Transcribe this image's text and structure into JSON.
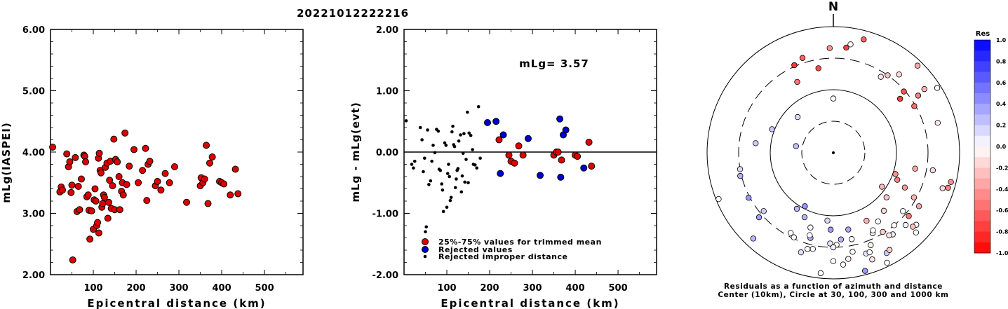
{
  "event_title": "20221012222216",
  "chart_data": [
    {
      "type": "scatter",
      "xlabel": "Epicentral distance (km)",
      "ylabel": "mLg(IASPEI)",
      "xlim": [
        0,
        590
      ],
      "ylim": [
        2.0,
        6.0
      ],
      "xticks": [
        "100",
        "200",
        "300",
        "400",
        "500"
      ],
      "yticks": [
        "2.00",
        "3.00",
        "4.00",
        "5.00",
        "6.00"
      ],
      "grid": false,
      "series": [
        {
          "color": "#dd0000",
          "points": [
            [
              5,
              4.08
            ],
            [
              22,
              3.35
            ],
            [
              25,
              3.43
            ],
            [
              28,
              3.38
            ],
            [
              38,
              3.97
            ],
            [
              42,
              3.76
            ],
            [
              45,
              3.84
            ],
            [
              48,
              3.34
            ],
            [
              50,
              3.46
            ],
            [
              52,
              2.24
            ],
            [
              58,
              3.91
            ],
            [
              62,
              3.03
            ],
            [
              65,
              3.44
            ],
            [
              68,
              3.06
            ],
            [
              72,
              3.56
            ],
            [
              78,
              3.95
            ],
            [
              80,
              3.93
            ],
            [
              82,
              3.84
            ],
            [
              85,
              3.27
            ],
            [
              88,
              3.3
            ],
            [
              90,
              3.05
            ],
            [
              92,
              2.58
            ],
            [
              96,
              3.04
            ],
            [
              100,
              2.74
            ],
            [
              102,
              3.22
            ],
            [
              104,
              3.4
            ],
            [
              106,
              3.2
            ],
            [
              108,
              2.8
            ],
            [
              110,
              2.85
            ],
            [
              112,
              3.9
            ],
            [
              113,
              2.68
            ],
            [
              114,
              3.98
            ],
            [
              116,
              3.7
            ],
            [
              118,
              3.66
            ],
            [
              120,
              3.1
            ],
            [
              122,
              3.16
            ],
            [
              124,
              3.3
            ],
            [
              126,
              3.26
            ],
            [
              128,
              3.75
            ],
            [
              132,
              3.82
            ],
            [
              134,
              2.92
            ],
            [
              136,
              3.18
            ],
            [
              138,
              3.54
            ],
            [
              140,
              3.85
            ],
            [
              142,
              3.08
            ],
            [
              145,
              3.45
            ],
            [
              148,
              4.21
            ],
            [
              150,
              3.06
            ],
            [
              152,
              3.88
            ],
            [
              156,
              3.84
            ],
            [
              160,
              3.6
            ],
            [
              162,
              3.06
            ],
            [
              166,
              3.36
            ],
            [
              168,
              3.5
            ],
            [
              170,
              3.3
            ],
            [
              174,
              4.31
            ],
            [
              178,
              3.47
            ],
            [
              184,
              3.77
            ],
            [
              195,
              4.04
            ],
            [
              205,
              3.5
            ],
            [
              215,
              3.7
            ],
            [
              222,
              4.06
            ],
            [
              225,
              3.21
            ],
            [
              228,
              3.8
            ],
            [
              232,
              3.85
            ],
            [
              245,
              3.45
            ],
            [
              250,
              3.52
            ],
            [
              258,
              3.38
            ],
            [
              268,
              3.65
            ],
            [
              278,
              3.5
            ],
            [
              290,
              3.76
            ],
            [
              318,
              3.18
            ],
            [
              350,
              3.45
            ],
            [
              352,
              3.58
            ],
            [
              356,
              3.5
            ],
            [
              360,
              3.56
            ],
            [
              364,
              4.11
            ],
            [
              368,
              3.16
            ],
            [
              372,
              3.82
            ],
            [
              378,
              3.92
            ],
            [
              395,
              3.52
            ],
            [
              400,
              3.5
            ],
            [
              405,
              3.48
            ],
            [
              420,
              3.3
            ],
            [
              432,
              3.72
            ],
            [
              438,
              3.32
            ]
          ]
        }
      ]
    },
    {
      "type": "scatter",
      "xlabel": "Epicentral distance (km)",
      "ylabel": "mLg - mLg(evt)",
      "xlim": [
        0,
        590
      ],
      "ylim": [
        -2.0,
        2.0
      ],
      "xticks": [
        "100",
        "200",
        "300",
        "400",
        "500"
      ],
      "yticks": [
        "-2.00",
        "-1.00",
        "0.00",
        "1.00",
        "2.00"
      ],
      "grid": false,
      "annotation": "mLg= 3.57",
      "series": [
        {
          "name": "25%-75% values for trimmed mean",
          "color": "#dd0000",
          "points": [
            [
              222,
              0.2
            ],
            [
              245,
              -0.05
            ],
            [
              250,
              -0.15
            ],
            [
              258,
              -0.18
            ],
            [
              268,
              0.1
            ],
            [
              278,
              -0.05
            ],
            [
              350,
              -0.05
            ],
            [
              356,
              0.0
            ],
            [
              360,
              0.0
            ],
            [
              368,
              -0.13
            ],
            [
              400,
              -0.05
            ],
            [
              405,
              -0.07
            ],
            [
              432,
              0.16
            ],
            [
              438,
              -0.23
            ]
          ]
        },
        {
          "name": "Rejected values",
          "color": "#0000cc",
          "points": [
            [
              195,
              0.48
            ],
            [
              215,
              0.5
            ],
            [
              225,
              -0.35
            ],
            [
              232,
              0.28
            ],
            [
              290,
              0.22
            ],
            [
              318,
              -0.38
            ],
            [
              364,
              0.54
            ],
            [
              366,
              -0.41
            ],
            [
              372,
              0.28
            ],
            [
              378,
              0.36
            ],
            [
              420,
              -0.26
            ]
          ]
        },
        {
          "name": "Rejected improper distance",
          "color": "#000000",
          "points": [
            [
              5,
              0.51
            ],
            [
              18,
              -0.2
            ],
            [
              22,
              -0.26
            ],
            [
              25,
              -0.15
            ],
            [
              38,
              0.4
            ],
            [
              42,
              0.2
            ],
            [
              45,
              -0.32
            ],
            [
              48,
              -0.1
            ],
            [
              50,
              -1.3
            ],
            [
              52,
              -1.22
            ],
            [
              55,
              0.36
            ],
            [
              58,
              -0.53
            ],
            [
              62,
              -0.47
            ],
            [
              65,
              -0.15
            ],
            [
              68,
              0.11
            ],
            [
              72,
              -0.01
            ],
            [
              76,
              0.37
            ],
            [
              80,
              0.34
            ],
            [
              82,
              -0.28
            ],
            [
              85,
              -0.3
            ],
            [
              88,
              -0.52
            ],
            [
              90,
              -0.62
            ],
            [
              92,
              -0.97
            ],
            [
              95,
              0.15
            ],
            [
              98,
              0.11
            ],
            [
              100,
              -0.9
            ],
            [
              102,
              -0.35
            ],
            [
              104,
              -0.2
            ],
            [
              106,
              -0.4
            ],
            [
              108,
              -0.79
            ],
            [
              110,
              -0.74
            ],
            [
              112,
              0.33
            ],
            [
              114,
              0.42
            ],
            [
              116,
              0.12
            ],
            [
              118,
              0.09
            ],
            [
              120,
              -0.58
            ],
            [
              122,
              -0.44
            ],
            [
              124,
              -0.3
            ],
            [
              126,
              -0.27
            ],
            [
              128,
              0.18
            ],
            [
              132,
              0.28
            ],
            [
              134,
              -0.65
            ],
            [
              136,
              -0.39
            ],
            [
              138,
              -0.02
            ],
            [
              140,
              0.3
            ],
            [
              142,
              -0.49
            ],
            [
              145,
              -0.12
            ],
            [
              148,
              0.65
            ],
            [
              150,
              -0.5
            ],
            [
              152,
              0.31
            ],
            [
              156,
              0.27
            ],
            [
              160,
              0.04
            ],
            [
              162,
              -0.2
            ],
            [
              166,
              -0.21
            ],
            [
              170,
              -0.26
            ],
            [
              174,
              0.74
            ],
            [
              178,
              -0.1
            ]
          ]
        }
      ]
    },
    {
      "type": "scatter",
      "caption_line1": "Residuals as a function of azimuth and distance",
      "caption_line2": "Center (10km), Circle at 30, 100, 300 and 1000 km",
      "north_label": "N",
      "colorbar_title": "Res",
      "colorbar_ticks": [
        "1.0",
        "0.8",
        "0.6",
        "0.4",
        "0.2",
        "0.0",
        "-0.2",
        "-0.4",
        "-0.6",
        "-0.8",
        "-1.0"
      ],
      "polar_points": [
        [
          -45,
          0.4
        ],
        [
          -69,
          0.52
        ],
        [
          -83,
          0.62
        ],
        [
          -100,
          0.75
        ],
        [
          -112,
          0.98
        ],
        [
          -27,
          0.63
        ],
        [
          -10,
          0.68
        ],
        [
          -2,
          0.83
        ],
        [
          7,
          0.84
        ],
        [
          15,
          0.93
        ],
        [
          -80,
          0.3
        ],
        [
          -104,
          0.76
        ],
        [
          -152,
          0.48
        ],
        [
          -147,
          0.53
        ],
        [
          -165,
          0.7
        ],
        [
          -163,
          0.62
        ],
        [
          -168,
          0.78
        ],
        [
          -162,
          0.83
        ],
        [
          -156,
          0.56
        ],
        [
          -178,
          0.72
        ],
        [
          -185,
          0.89
        ],
        [
          -191,
          0.62
        ],
        [
          -175,
          0.54
        ],
        [
          -178,
          0.61
        ],
        [
          -180,
          0.86
        ],
        [
          -198,
          0.84
        ],
        [
          -192,
          0.7
        ],
        [
          -200,
          0.84
        ],
        [
          -208,
          0.9
        ],
        [
          -131,
          0.78
        ],
        [
          -118,
          0.76
        ],
        [
          -137,
          0.93
        ],
        [
          -206,
          0.71
        ],
        [
          -216,
          0.8
        ],
        [
          -229,
          0.87
        ],
        [
          -130,
          0.72
        ],
        [
          -225,
          0.81
        ],
        [
          -152,
          0.72
        ],
        [
          130,
          0.78
        ],
        [
          122,
          0.8
        ],
        [
          107,
          0.95
        ],
        [
          133,
          0.86
        ],
        [
          100,
          0.8
        ],
        [
          101,
          0.66
        ],
        [
          113,
          0.55
        ],
        [
          109,
          0.52
        ],
        [
          125,
          0.47
        ],
        [
          130,
          0.55
        ],
        [
          139,
          0.61
        ],
        [
          60,
          0.74
        ],
        [
          51,
          0.68
        ],
        [
          49,
          0.74
        ],
        [
          56,
          0.81
        ],
        [
          55,
          0.88
        ],
        [
          44,
          0.96
        ],
        [
          74,
          0.86
        ],
        [
          58,
          0.97
        ],
        [
          0,
          0.43
        ],
        [
          -24,
          0.76
        ],
        [
          -18,
          0.79
        ],
        [
          104,
          0.96
        ],
        [
          116,
          0.63
        ],
        [
          119,
          0.73
        ],
        [
          108,
          0.91
        ],
        [
          32,
          0.71
        ],
        [
          148,
          0.74
        ],
        [
          154,
          0.6
        ],
        [
          150,
          0.89
        ],
        [
          160,
          0.9
        ],
        [
          158,
          0.79
        ],
        [
          169,
          0.8
        ],
        [
          178,
          0.73
        ],
        [
          175,
          0.69
        ],
        [
          134,
          0.91
        ],
        [
          140,
          0.75
        ],
        [
          146,
          0.79
        ],
        [
          154,
          0.97
        ],
        [
          186,
          0.96
        ],
        [
          195,
          0.79
        ],
        [
          172,
          0.85
        ],
        [
          196,
          0.68
        ],
        [
          205,
          0.74
        ],
        [
          165,
          0.97
        ],
        [
          180,
          0.75
        ],
        [
          147,
          0.65
        ],
        [
          153,
          0.69
        ],
        [
          130,
          0.72
        ],
        [
          35,
          0.75
        ],
        [
          40,
          0.81
        ],
        [
          9,
          0.87
        ]
      ],
      "polar_residuals": [
        0.15,
        0.22,
        0.2,
        0.15,
        0.0,
        -0.55,
        -0.7,
        -0.42,
        -0.75,
        -0.62,
        0.25,
        0.3,
        0.42,
        0.28,
        0.33,
        0.0,
        0.0,
        0.12,
        0.3,
        0.1,
        0.0,
        0.33,
        0.15,
        0.38,
        0.0,
        0.1,
        0.0,
        0.0,
        0.2,
        0.38,
        0.4,
        0.28,
        0.05,
        0.05,
        0.0,
        0.2,
        0.05,
        0.0,
        -0.52,
        -0.35,
        -0.5,
        -0.25,
        -0.15,
        -0.35,
        -0.5,
        -0.42,
        -0.28,
        -0.22,
        -0.15,
        -0.58,
        -0.75,
        -0.68,
        -0.5,
        -0.3,
        -0.35,
        -0.1,
        -0.02,
        0.0,
        -0.78,
        -0.62,
        -0.45,
        -0.4,
        -0.3,
        -0.15,
        -0.1,
        -0.2,
        -0.3,
        -0.2,
        -0.1,
        -0.05,
        0.0,
        0.0,
        0.3,
        0.0,
        0.0,
        -0.1,
        0.0,
        0.0,
        0.0,
        -0.05,
        0.0,
        0.0,
        0.4,
        0.05,
        0.0,
        0.0,
        0.0,
        -0.25,
        -0.15,
        0.0
      ]
    }
  ]
}
